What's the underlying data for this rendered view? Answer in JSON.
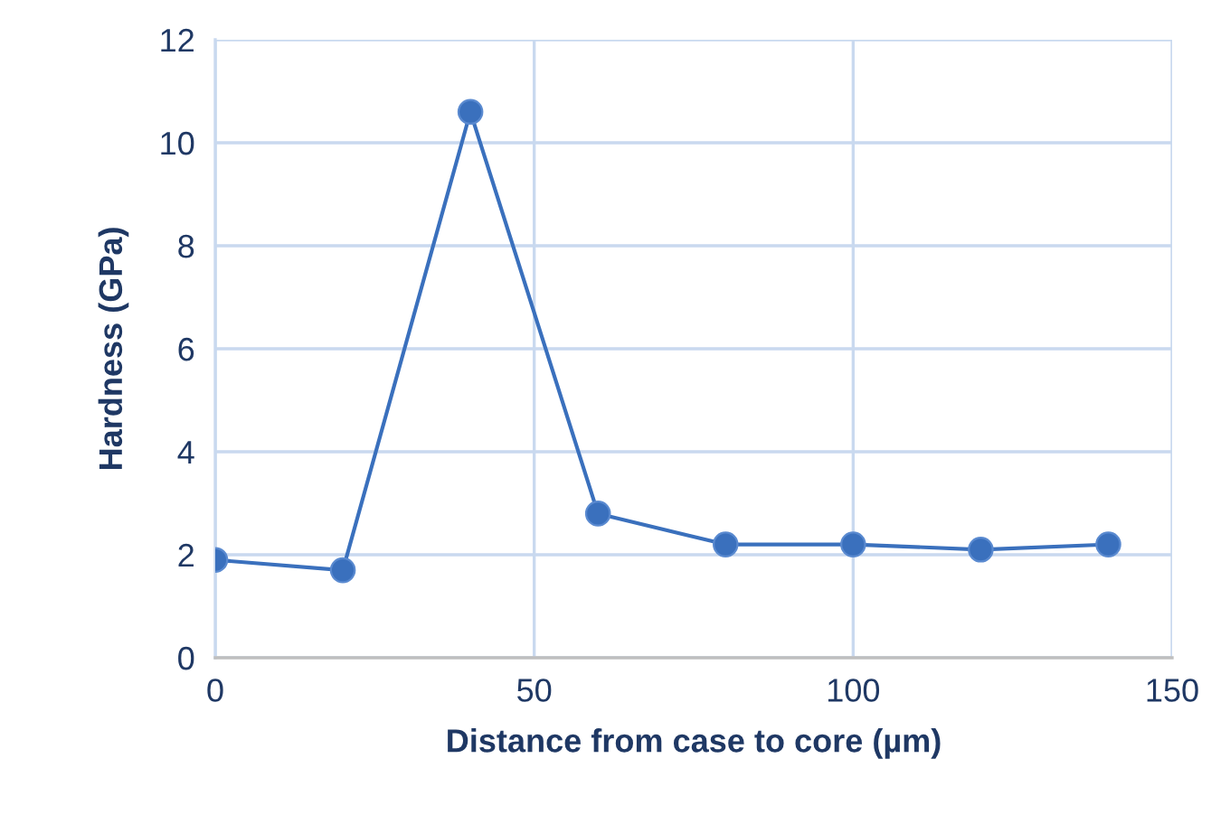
{
  "chart_data": {
    "type": "line",
    "xlabel": "Distance from case to core (µm)",
    "ylabel": "Hardness (GPa)",
    "x": [
      0,
      20,
      40,
      60,
      80,
      100,
      120,
      140
    ],
    "series": [
      {
        "color": "#3a70bd",
        "values": [
          1.9,
          1.7,
          10.6,
          2.8,
          2.2,
          2.2,
          2.1,
          2.2
        ]
      }
    ],
    "xlim": [
      0,
      150
    ],
    "xticks": [
      0,
      50,
      100,
      150
    ],
    "ylim": [
      0,
      12
    ],
    "yticks": [
      0,
      2,
      4,
      6,
      8,
      10,
      12
    ],
    "grid": true,
    "marker": "circle",
    "line_style": "solid"
  }
}
